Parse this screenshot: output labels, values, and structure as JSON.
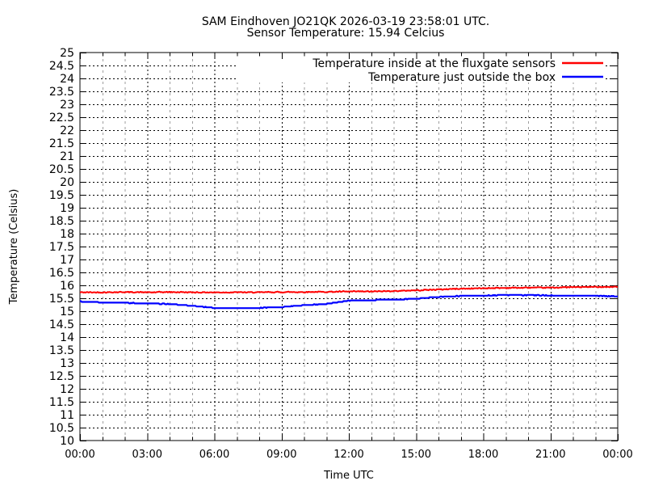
{
  "header": {
    "title": "SAM Eindhoven JO21QK 2026-03-19 23:58:01 UTC.",
    "subtitle": "Sensor Temperature: 15.94 Celcius"
  },
  "colors": {
    "background": "#ffffff",
    "border": "#000000",
    "grid_major": "#000000",
    "grid_minor": "#9e9e9e",
    "series_inside": "#ff0000",
    "series_outside": "#0000ff",
    "text": "#000000"
  },
  "chart_data": {
    "type": "line",
    "title": "SAM Eindhoven JO21QK 2026-03-19 23:58:01 UTC.",
    "subtitle": "Sensor Temperature: 15.94 Celcius",
    "xlabel": "Time UTC",
    "ylabel": "Temperature (Celsius)",
    "xlim_hours": [
      0,
      24
    ],
    "ylim": [
      10,
      25
    ],
    "y_tick_step": 0.5,
    "x_tick_step_hours": 3,
    "x_minor_tick_step_hours": 1,
    "grid": "on",
    "legend_position": "top-right-inside-opaque",
    "x_tick_labels": [
      "00:00",
      "03:00",
      "06:00",
      "09:00",
      "12:00",
      "15:00",
      "18:00",
      "21:00",
      "00:00"
    ],
    "y_tick_labels": [
      "25",
      "24.5",
      "24",
      "23.5",
      "23",
      "22.5",
      "22",
      "21.5",
      "21",
      "20.5",
      "20",
      "19.5",
      "19",
      "18.5",
      "18",
      "17.5",
      "17",
      "16.5",
      "16",
      "15.5",
      "15",
      "14.5",
      "14",
      "13.5",
      "13",
      "12.5",
      "12",
      "11.5",
      "11",
      "10.5",
      "10"
    ],
    "series": [
      {
        "name": "Temperature inside at the fluxgate sensors",
        "color": "#ff0000",
        "x_hours": [
          0,
          1,
          2,
          3,
          4,
          5,
          6,
          7,
          8,
          9,
          10,
          11,
          12,
          13,
          14,
          15,
          16,
          17,
          18,
          19,
          20,
          21,
          22,
          23,
          24
        ],
        "values": [
          15.73,
          15.73,
          15.74,
          15.73,
          15.74,
          15.73,
          15.73,
          15.73,
          15.73,
          15.74,
          15.74,
          15.75,
          15.76,
          15.76,
          15.78,
          15.81,
          15.84,
          15.87,
          15.89,
          15.9,
          15.91,
          15.91,
          15.93,
          15.94,
          15.94
        ]
      },
      {
        "name": "Temperature just outside the box",
        "color": "#0000ff",
        "x_hours": [
          0,
          1,
          2,
          3,
          4,
          5,
          6,
          7,
          8,
          9,
          10,
          11,
          12,
          13,
          14,
          15,
          16,
          17,
          18,
          19,
          20,
          21,
          22,
          23,
          24
        ],
        "values": [
          15.38,
          15.34,
          15.32,
          15.3,
          15.28,
          15.21,
          15.13,
          15.11,
          15.13,
          15.16,
          15.23,
          15.28,
          15.41,
          15.43,
          15.45,
          15.48,
          15.55,
          15.59,
          15.61,
          15.62,
          15.62,
          15.61,
          15.6,
          15.59,
          15.58
        ]
      }
    ]
  }
}
